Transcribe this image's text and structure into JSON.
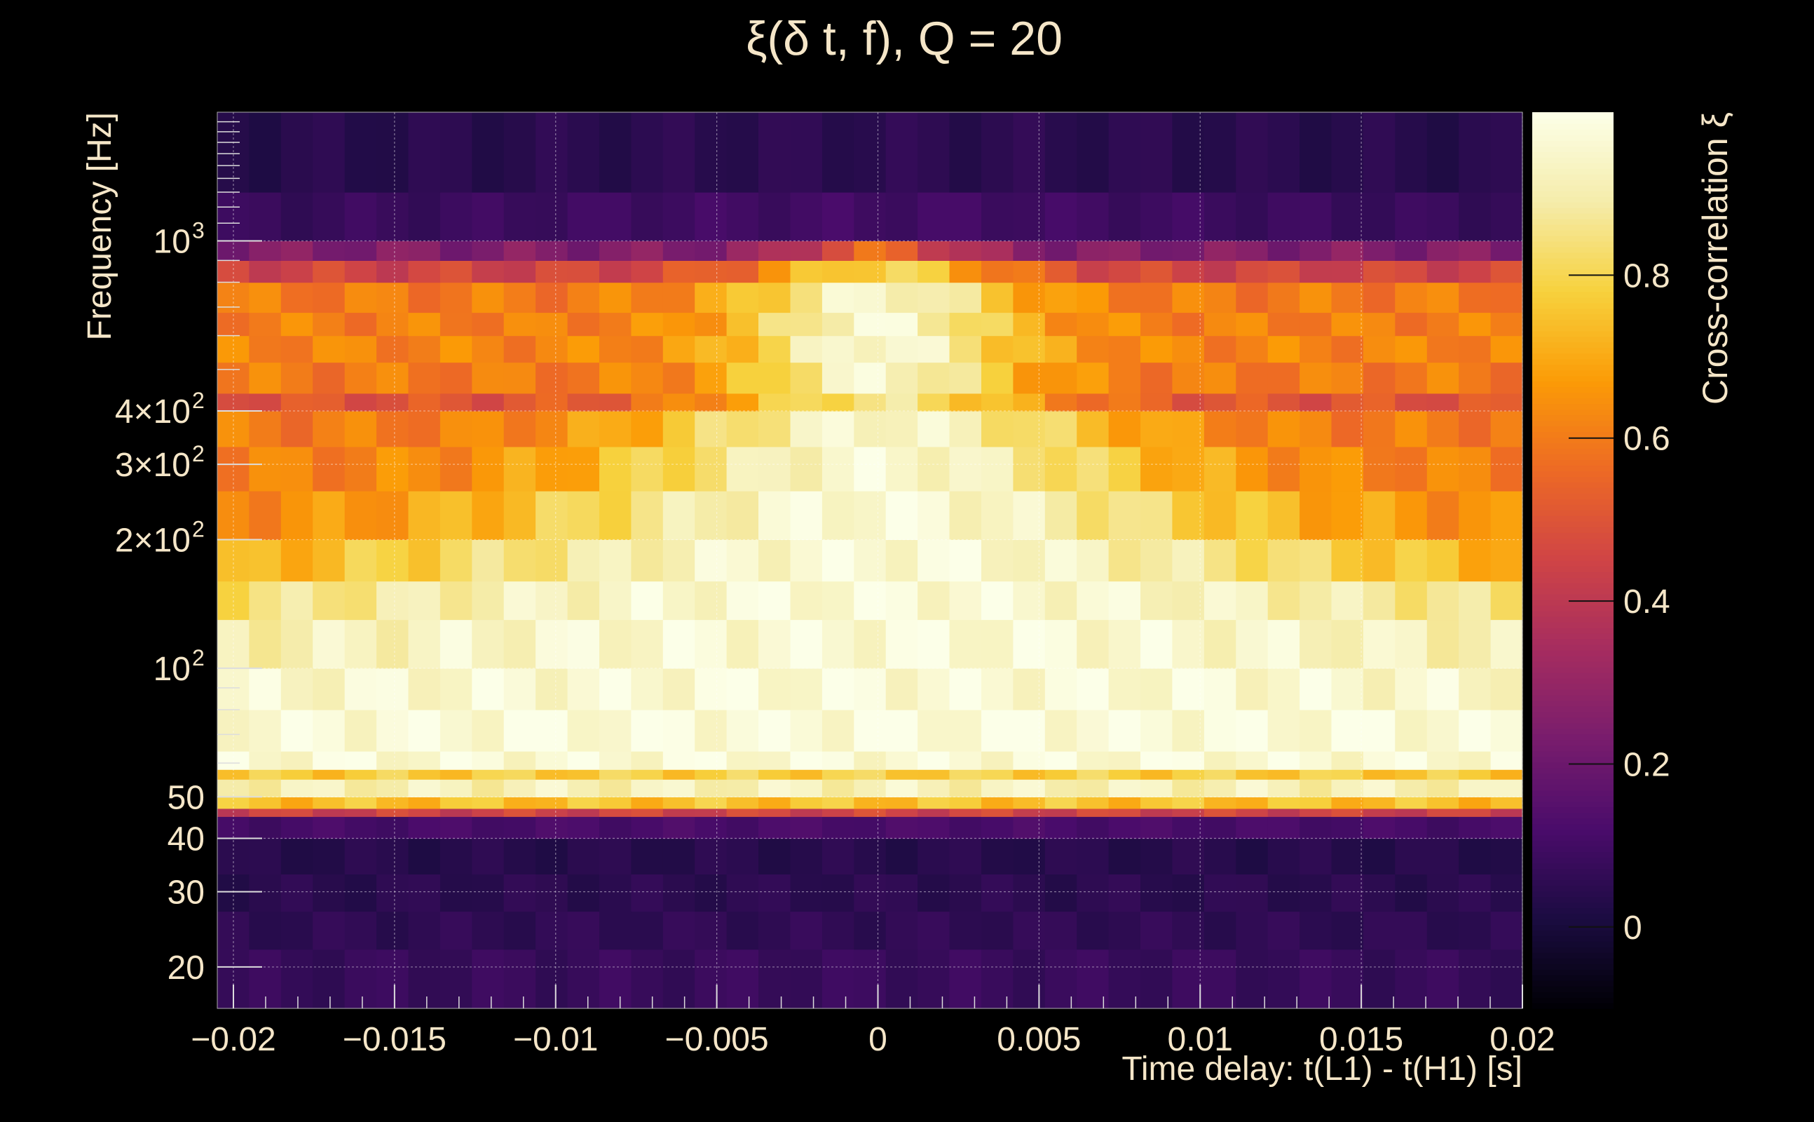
{
  "chart_data": {
    "type": "heatmap",
    "title": "ξ(δ t, f), Q = 20",
    "xlabel": "Time delay: t(L1) - t(H1) [s]",
    "ylabel": "Frequency [Hz]",
    "colorbar_label": "Cross-correlation ξ",
    "x_scale": "linear",
    "y_scale": "log",
    "xlim": [
      -0.0205,
      0.02
    ],
    "ylim": [
      16,
      2000
    ],
    "clim": [
      -0.1,
      1.0
    ],
    "colormap": "inferno",
    "grid": true,
    "x_ticks": [
      {
        "value": -0.02,
        "label": "−0.02"
      },
      {
        "value": -0.015,
        "label": "−0.015"
      },
      {
        "value": -0.01,
        "label": "−0.01"
      },
      {
        "value": -0.005,
        "label": "−0.005"
      },
      {
        "value": 0,
        "label": "0"
      },
      {
        "value": 0.005,
        "label": "0.005"
      },
      {
        "value": 0.01,
        "label": "0.01"
      },
      {
        "value": 0.015,
        "label": "0.015"
      },
      {
        "value": 0.02,
        "label": "0.02"
      }
    ],
    "y_ticks": [
      {
        "value": 20,
        "base": "20",
        "sup": ""
      },
      {
        "value": 30,
        "base": "30",
        "sup": ""
      },
      {
        "value": 40,
        "base": "40",
        "sup": ""
      },
      {
        "value": 50,
        "base": "50",
        "sup": ""
      },
      {
        "value": 100,
        "base": "10",
        "sup": "2"
      },
      {
        "value": 200,
        "base": "2×10",
        "sup": "2"
      },
      {
        "value": 300,
        "base": "3×10",
        "sup": "2"
      },
      {
        "value": 400,
        "base": "4×10",
        "sup": "2"
      },
      {
        "value": 1000,
        "base": "10",
        "sup": "3"
      }
    ],
    "colorbar_ticks": [
      {
        "value": 0,
        "label": "0"
      },
      {
        "value": 0.2,
        "label": "0.2"
      },
      {
        "value": 0.4,
        "label": "0.4"
      },
      {
        "value": 0.6,
        "label": "0.6"
      },
      {
        "value": 0.8,
        "label": "0.8"
      }
    ],
    "frequency_bands": [
      {
        "f_low": 16,
        "f_high": 22,
        "peak": 0.08,
        "width": 0.02
      },
      {
        "f_low": 22,
        "f_high": 27,
        "peak": 0.06,
        "width": 0.02
      },
      {
        "f_low": 27,
        "f_high": 33,
        "peak": 0.05,
        "width": 0.02
      },
      {
        "f_low": 33,
        "f_high": 40,
        "peak": 0.04,
        "width": 0.02
      },
      {
        "f_low": 40,
        "f_high": 45,
        "peak": 0.12,
        "width": 0.02
      },
      {
        "f_low": 45,
        "f_high": 47,
        "peak": 0.45,
        "width": 0.04
      },
      {
        "f_low": 47,
        "f_high": 50,
        "peak": 0.75,
        "width": 0.08
      },
      {
        "f_low": 50,
        "f_high": 55,
        "peak": 0.92,
        "width": 0.08
      },
      {
        "f_low": 55,
        "f_high": 58,
        "peak": 0.78,
        "width": 0.06
      },
      {
        "f_low": 58,
        "f_high": 64,
        "peak": 0.97,
        "width": 0.1
      },
      {
        "f_low": 64,
        "f_high": 80,
        "peak": 0.98,
        "width": 0.08
      },
      {
        "f_low": 80,
        "f_high": 100,
        "peak": 0.97,
        "width": 0.05
      },
      {
        "f_low": 100,
        "f_high": 130,
        "peak": 0.97,
        "width": 0.03
      },
      {
        "f_low": 130,
        "f_high": 160,
        "peak": 0.97,
        "width": 0.02
      },
      {
        "f_low": 160,
        "f_high": 200,
        "peak": 0.97,
        "width": 0.012
      },
      {
        "f_low": 200,
        "f_high": 260,
        "peak": 0.97,
        "width": 0.008
      },
      {
        "f_low": 260,
        "f_high": 330,
        "peak": 0.96,
        "width": 0.006
      },
      {
        "f_low": 330,
        "f_high": 400,
        "peak": 0.95,
        "width": 0.005
      },
      {
        "f_low": 400,
        "f_high": 440,
        "peak": 0.85,
        "width": 0.004
      },
      {
        "f_low": 440,
        "f_high": 520,
        "peak": 0.95,
        "width": 0.003
      },
      {
        "f_low": 520,
        "f_high": 600,
        "peak": 0.97,
        "width": 0.003
      },
      {
        "f_low": 600,
        "f_high": 680,
        "peak": 0.96,
        "width": 0.003
      },
      {
        "f_low": 680,
        "f_high": 800,
        "peak": 0.95,
        "width": 0.003
      },
      {
        "f_low": 800,
        "f_high": 900,
        "peak": 0.8,
        "width": 0.003
      },
      {
        "f_low": 900,
        "f_high": 1000,
        "peak": 0.55,
        "width": 0.002
      },
      {
        "f_low": 1000,
        "f_high": 1300,
        "peak": 0.1,
        "width": 0.01
      },
      {
        "f_low": 1300,
        "f_high": 2000,
        "peak": 0.05,
        "width": 0.01
      }
    ]
  }
}
